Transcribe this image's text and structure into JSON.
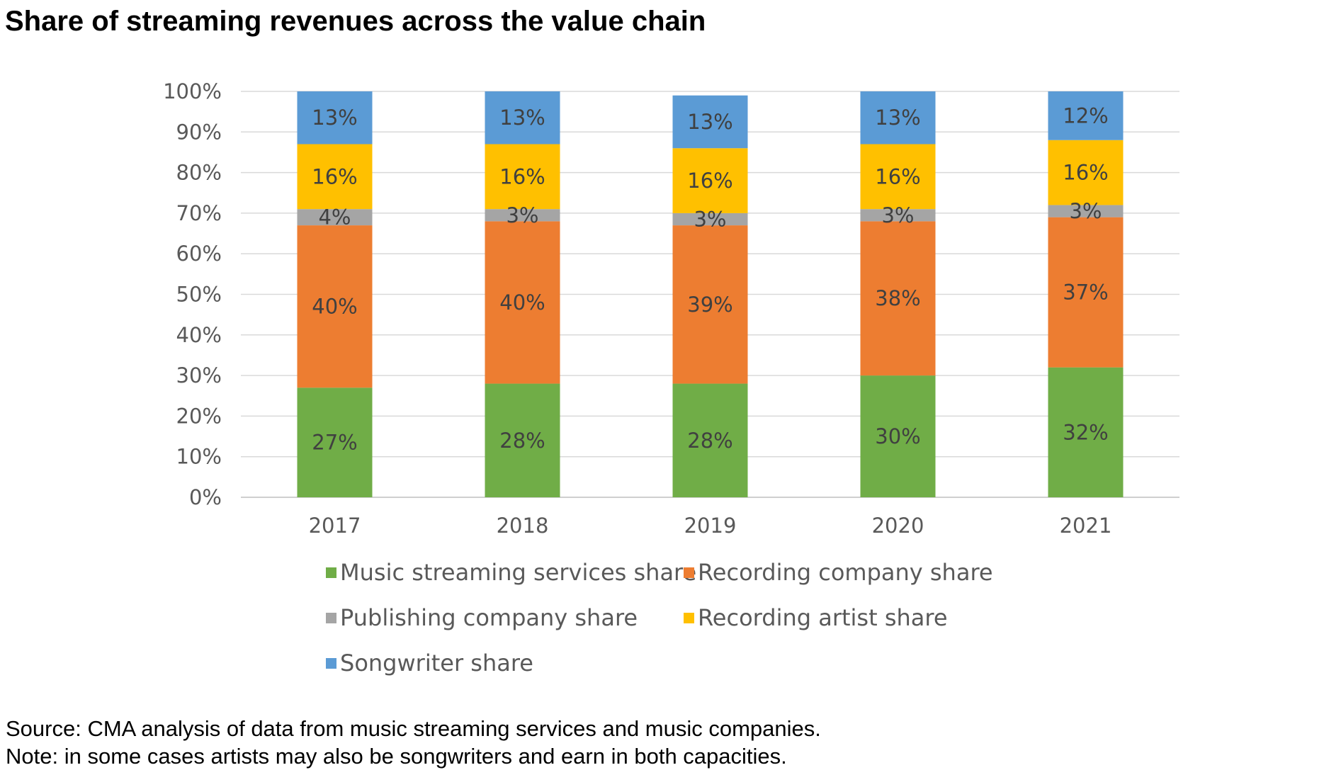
{
  "title": "Share of streaming revenues across the value chain",
  "source": "Source: CMA analysis of data from music streaming services and music companies.",
  "note": "Note: in some cases artists may also be songwriters and earn in both capacities.",
  "chart_data": {
    "type": "bar",
    "stacked": true,
    "percent_stacked": true,
    "title": "Share of streaming revenues across the value chain",
    "categories": [
      "2017",
      "2018",
      "2019",
      "2020",
      "2021"
    ],
    "ylim": [
      0,
      100
    ],
    "yticks": [
      "0%",
      "10%",
      "20%",
      "30%",
      "40%",
      "50%",
      "60%",
      "70%",
      "80%",
      "90%",
      "100%"
    ],
    "grid": true,
    "legend_position": "bottom",
    "series": [
      {
        "name": "Music streaming services share",
        "color": "#70AD47",
        "values": [
          27,
          28,
          28,
          30,
          32
        ],
        "labels": [
          "27%",
          "28%",
          "28%",
          "30%",
          "32%"
        ]
      },
      {
        "name": "Recording company share",
        "color": "#ED7D31",
        "values": [
          40,
          40,
          39,
          38,
          37
        ],
        "labels": [
          "40%",
          "40%",
          "39%",
          "38%",
          "37%"
        ]
      },
      {
        "name": "Publishing company share",
        "color": "#A5A5A5",
        "values": [
          4,
          3,
          3,
          3,
          3
        ],
        "labels": [
          "4%",
          "3%",
          "3%",
          "3%",
          "3%"
        ]
      },
      {
        "name": "Recording artist share",
        "color": "#FFC000",
        "values": [
          16,
          16,
          16,
          16,
          16
        ],
        "labels": [
          "16%",
          "16%",
          "16%",
          "16%",
          "16%"
        ]
      },
      {
        "name": "Songwriter share",
        "color": "#5B9BD5",
        "values": [
          13,
          13,
          13,
          13,
          12
        ],
        "labels": [
          "13%",
          "13%",
          "13%",
          "13%",
          "12%"
        ]
      }
    ]
  }
}
